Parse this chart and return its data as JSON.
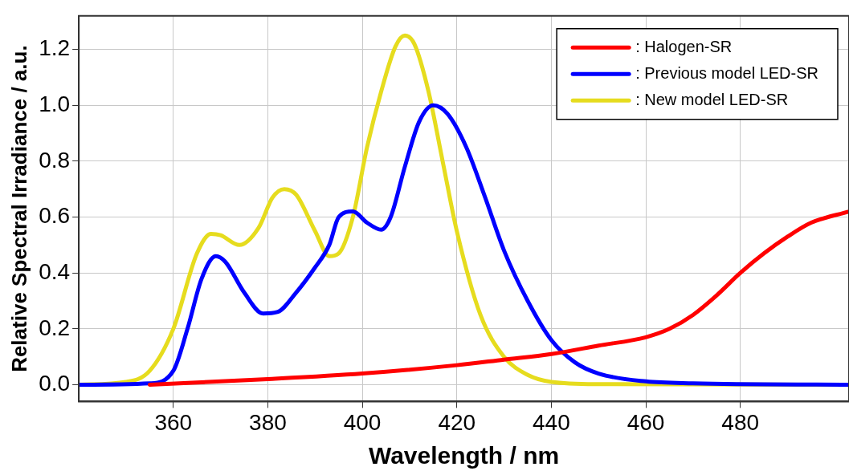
{
  "chart_data": {
    "type": "line",
    "xlabel": "Wavelength / nm",
    "ylabel": "Relative Spectral Irradiance / a.u.",
    "xlim": [
      340,
      503
    ],
    "xticks": [
      360,
      380,
      400,
      420,
      440,
      460,
      480
    ],
    "ylim": [
      -0.06,
      1.32
    ],
    "yticks": [
      {
        "value": 0,
        "label": "0.0"
      },
      {
        "value": 0.2,
        "label": "0.2"
      },
      {
        "value": 0.4,
        "label": "0.4"
      },
      {
        "value": 0.6,
        "label": "0.6"
      },
      {
        "value": 0.8,
        "label": "0.8"
      },
      {
        "value": 1,
        "label": "1.0"
      },
      {
        "value": 1.2,
        "label": "1.2"
      }
    ],
    "grid": true,
    "legend": "top right",
    "marker": "none",
    "line_style": "solid",
    "series": [
      {
        "name": ": Halogen-SR",
        "color": "#ff0000",
        "x": [
          355,
          380,
          400,
          420,
          430,
          440,
          450,
          460,
          465,
          470,
          475,
          480,
          485,
          490,
          495,
          503
        ],
        "values": [
          0,
          0.02,
          0.04,
          0.07,
          0.09,
          0.11,
          0.14,
          0.17,
          0.2,
          0.25,
          0.32,
          0.4,
          0.47,
          0.53,
          0.58,
          0.62
        ]
      },
      {
        "name": ": Previous model LED-SR",
        "color": "#0000ff",
        "x": [
          340,
          355,
          360,
          363,
          366,
          369,
          371,
          375,
          379,
          382,
          386,
          390,
          393,
          395,
          398,
          401,
          404,
          406,
          409,
          412,
          415,
          418,
          422,
          426,
          430,
          435,
          440,
          445,
          450,
          460,
          470,
          503
        ],
        "values": [
          0,
          0.005,
          0.05,
          0.2,
          0.38,
          0.46,
          0.44,
          0.33,
          0.255,
          0.26,
          0.33,
          0.42,
          0.5,
          0.6,
          0.62,
          0.58,
          0.555,
          0.6,
          0.78,
          0.94,
          1.0,
          0.97,
          0.85,
          0.67,
          0.48,
          0.3,
          0.16,
          0.08,
          0.04,
          0.012,
          0.005,
          0
        ]
      },
      {
        "name": ": New model LED-SR",
        "color": "#e6dc1e",
        "x": [
          340,
          350,
          355,
          360,
          365,
          368,
          370,
          374,
          378,
          381,
          383.5,
          386,
          390,
          393,
          395,
          398,
          401,
          404,
          407,
          409,
          411,
          414,
          417,
          420,
          425,
          430,
          435,
          440,
          450,
          503
        ],
        "values": [
          0,
          0.01,
          0.05,
          0.2,
          0.47,
          0.54,
          0.535,
          0.5,
          0.56,
          0.67,
          0.7,
          0.68,
          0.55,
          0.46,
          0.47,
          0.6,
          0.85,
          1.05,
          1.21,
          1.25,
          1.22,
          1.05,
          0.8,
          0.55,
          0.25,
          0.1,
          0.035,
          0.01,
          0.002,
          0
        ]
      }
    ]
  }
}
